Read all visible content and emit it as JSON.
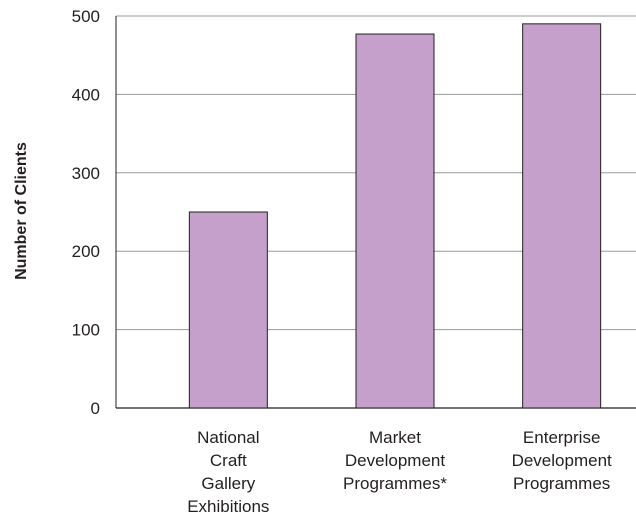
{
  "chart_data": {
    "type": "bar",
    "categories": [
      [
        "National",
        "Craft",
        "Gallery",
        "Exhibitions"
      ],
      [
        "Market",
        "Development",
        "Programmes*"
      ],
      [
        "Enterprise",
        "Development",
        "Programmes"
      ]
    ],
    "values": [
      250,
      477,
      490
    ],
    "title": "",
    "xlabel": "",
    "ylabel": "Number of Clients",
    "ylim": [
      0,
      500
    ],
    "yticks": [
      0,
      100,
      200,
      300,
      400,
      500
    ],
    "grid": true,
    "bar_color": "#c4a0cb",
    "bar_stroke": "#231f20",
    "grid_color": "#9a9a9a"
  }
}
